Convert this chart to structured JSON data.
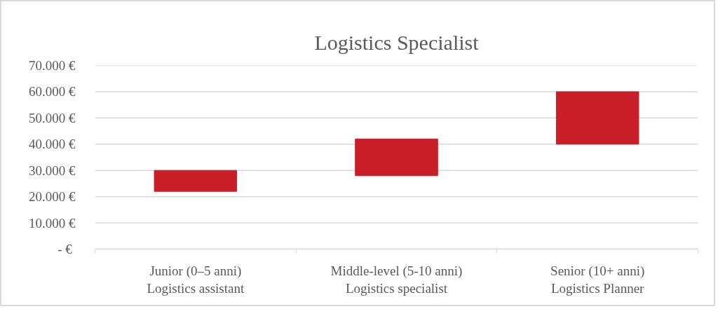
{
  "chart_data": {
    "type": "bar",
    "title": "Logistics Specialist",
    "categories": [
      "Junior (0–5 anni)\nLogistics assistant",
      "Middle-level (5-10 anni)\nLogistics specialist",
      "Senior (10+ anni)\nLogistics Planner"
    ],
    "base": [
      22000,
      28000,
      40000
    ],
    "values": [
      8000,
      14000,
      20000
    ],
    "color": "#c81e28",
    "ylim": [
      0,
      70000
    ],
    "yticks": [
      {
        "value": 0,
        "label": "-  €"
      },
      {
        "value": 10000,
        "label": "10.000 €"
      },
      {
        "value": 20000,
        "label": "20.000 €"
      },
      {
        "value": 30000,
        "label": "30.000 €"
      },
      {
        "value": 40000,
        "label": "40.000 €"
      },
      {
        "value": 50000,
        "label": "50.000 €"
      },
      {
        "value": 60000,
        "label": "60.000 €"
      },
      {
        "value": 70000,
        "label": "70.000 €"
      }
    ],
    "grid": "y"
  }
}
